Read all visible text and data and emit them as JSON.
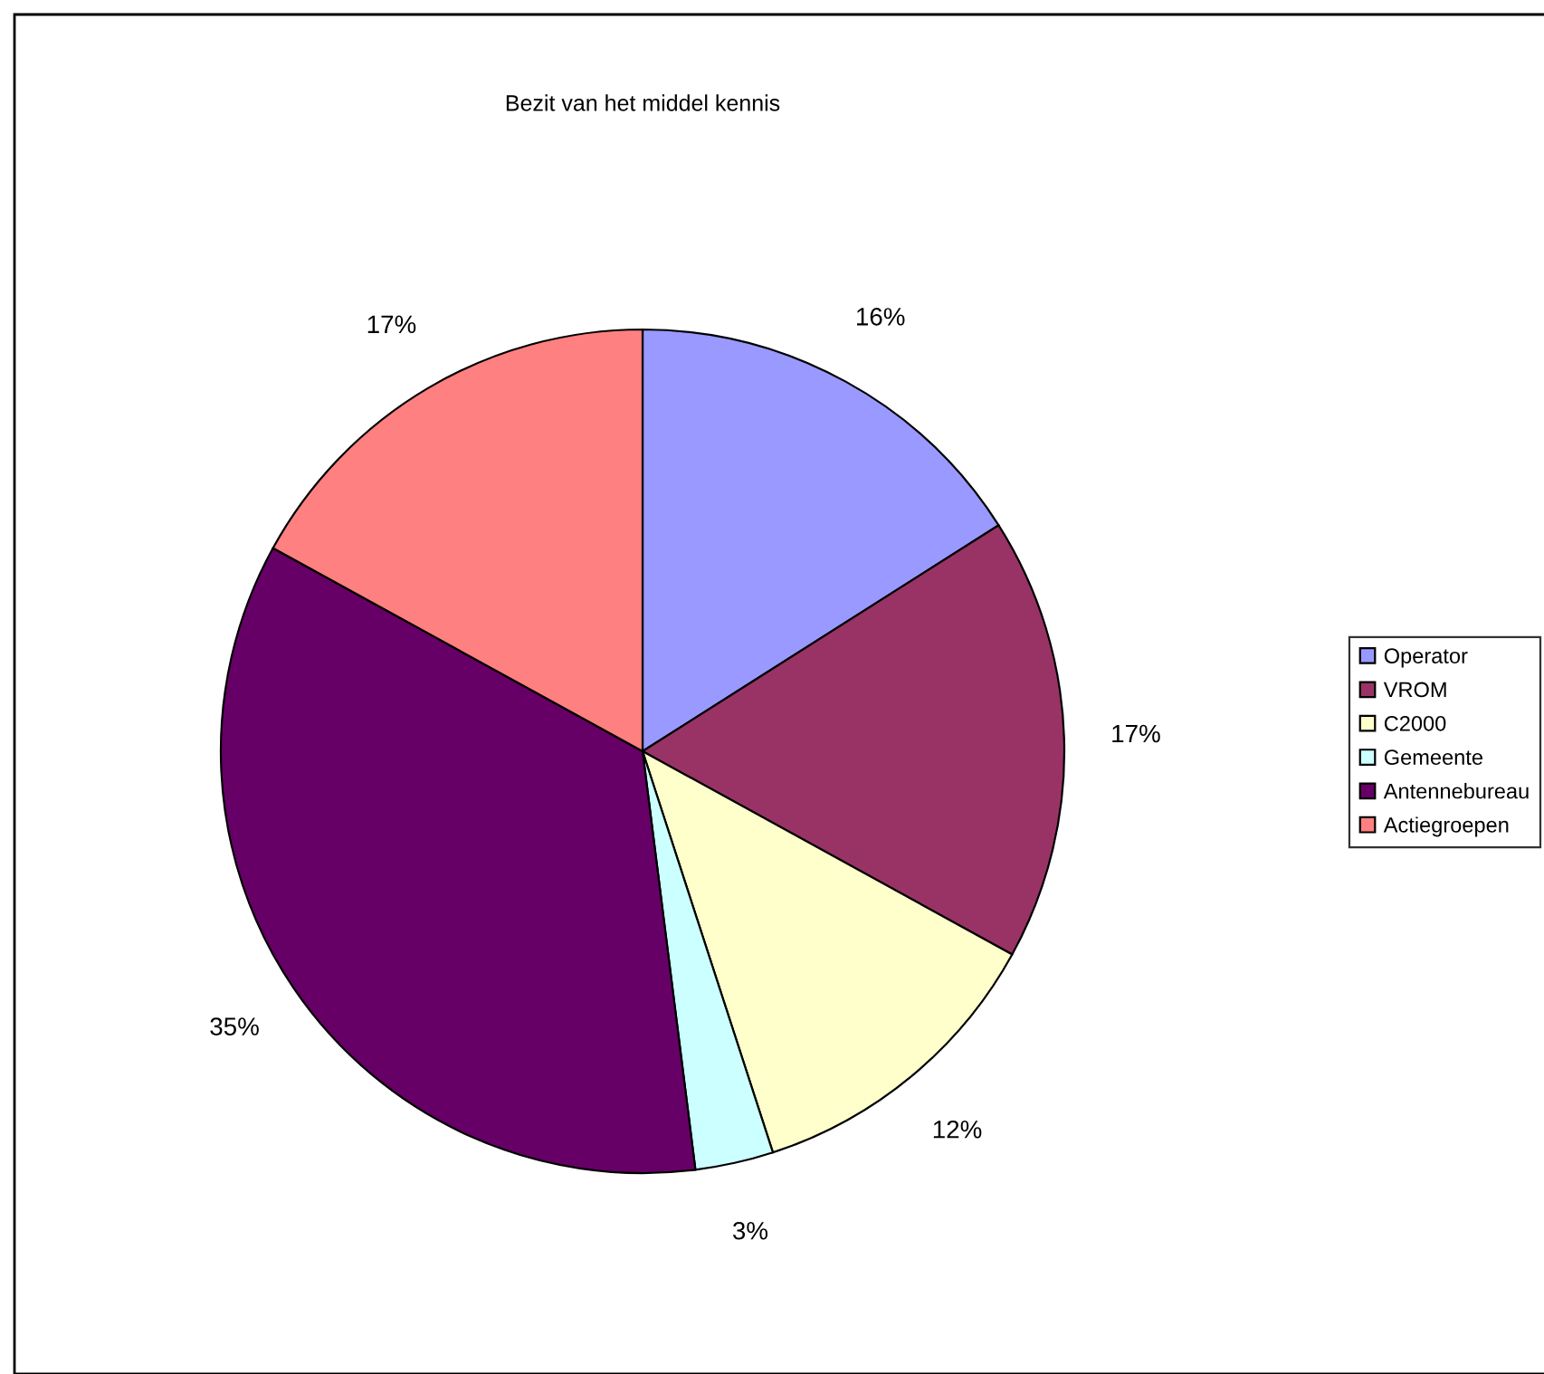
{
  "chart_data": {
    "type": "pie",
    "title": "Bezit van het middel kennis",
    "categories": [
      "Operator",
      "VROM",
      "C2000",
      "Gemeente",
      "Antennebureau",
      "Actiegroepen"
    ],
    "values": [
      16,
      17,
      12,
      3,
      35,
      17
    ],
    "colors": [
      "#9999ff",
      "#993366",
      "#ffffcc",
      "#ccffff",
      "#660066",
      "#ff8080"
    ],
    "value_labels": [
      "16%",
      "17%",
      "12%",
      "3%",
      "35%",
      "17%"
    ],
    "legend": "right"
  }
}
